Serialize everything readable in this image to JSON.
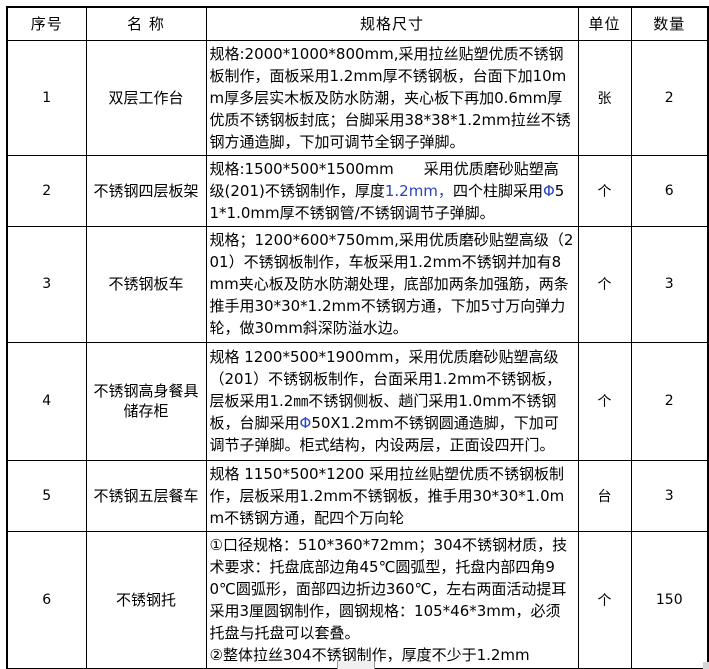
{
  "colors": {
    "blue_accent": "#2942C8",
    "border": "#000000",
    "background": "#FFFFFF"
  },
  "table": {
    "columns": [
      "序号",
      "名 称",
      "规格尺寸",
      "单位",
      "数量"
    ],
    "rows": [
      {
        "no": "1",
        "name": "双层工作台",
        "spec": "规格:2000*1000*800mm,采用拉丝贴塑优质不锈钢板制作，面板采用1.2mm厚不锈钢板，台面下加10mm厚多层实木板及防水防潮，夹心板下再加0.6mm厚优质不锈钢板封底；台脚采用38*38*1.2mm拉丝不锈钢方通造脚，下加可调节全钢子弹脚。",
        "unit": "张",
        "qty": "2",
        "highlights": []
      },
      {
        "no": "2",
        "name": "不锈钢四层板架",
        "spec": "规格:1500*500*1500mm　　采用优质磨砂贴塑高级(201)不锈钢制作，厚度1.2mm，四个柱脚采用Φ51*1.0mm厚不锈钢管/不锈钢调节子弹脚。",
        "unit": "个",
        "qty": "6",
        "highlights": [
          "1.2mm，",
          "Φ"
        ]
      },
      {
        "no": "3",
        "name": "不锈钢板车",
        "spec": "规格；1200*600*750mm,采用优质磨砂贴塑高级（201）不锈钢板制作，车板采用1.2mm不锈钢并加有8mm夹心板及防水防潮处理，底部加两条加强筋，两条推手用30*30*1.2mm不锈钢方通，下加5寸万向弹力轮，做30mm斜深防溢水边。",
        "unit": "个",
        "qty": "3",
        "highlights": []
      },
      {
        "no": "4",
        "name": "不锈钢高身餐具储存柜",
        "spec": "规格 1200*500*1900mm，采用优质磨砂贴塑高级（201）不锈钢板制作，台面采用1.2mm不锈钢板，层板采用1.2㎜不锈钢侧板、趟门采用1.0mm不锈钢板，台脚采用Φ50X1.2mm不锈钢圆通造脚，下加可调节子弹脚。柜式结构，内设两层，正面设四开门。",
        "unit": "个",
        "qty": "2",
        "highlights": [
          "Φ"
        ]
      },
      {
        "no": "5",
        "name": "不锈钢五层餐车",
        "spec": "规格 1150*500*1200 采用拉丝贴塑优质不锈钢板制作，层板采用1.2mm不锈钢板，推手用30*30*1.0mm不锈钢方通，配四个万向轮",
        "unit": "台",
        "qty": "3",
        "highlights": []
      },
      {
        "no": "6",
        "name": "不锈钢托",
        "spec": "①口径规格：510*360*72mm；304不锈钢材质，技术要求：托盘底部边角45℃圆弧型，托盘内部四角90℃圆弧形，面部四边折边360℃，左右两面活动提耳采用3厘圆钢制作，圆钢规格：105*46*3mm，必须托盘与托盘可以套叠。\n②整体拉丝304不锈钢制作，厚度不少于1.2mm",
        "unit": "个",
        "qty": "150",
        "highlights": []
      }
    ]
  }
}
